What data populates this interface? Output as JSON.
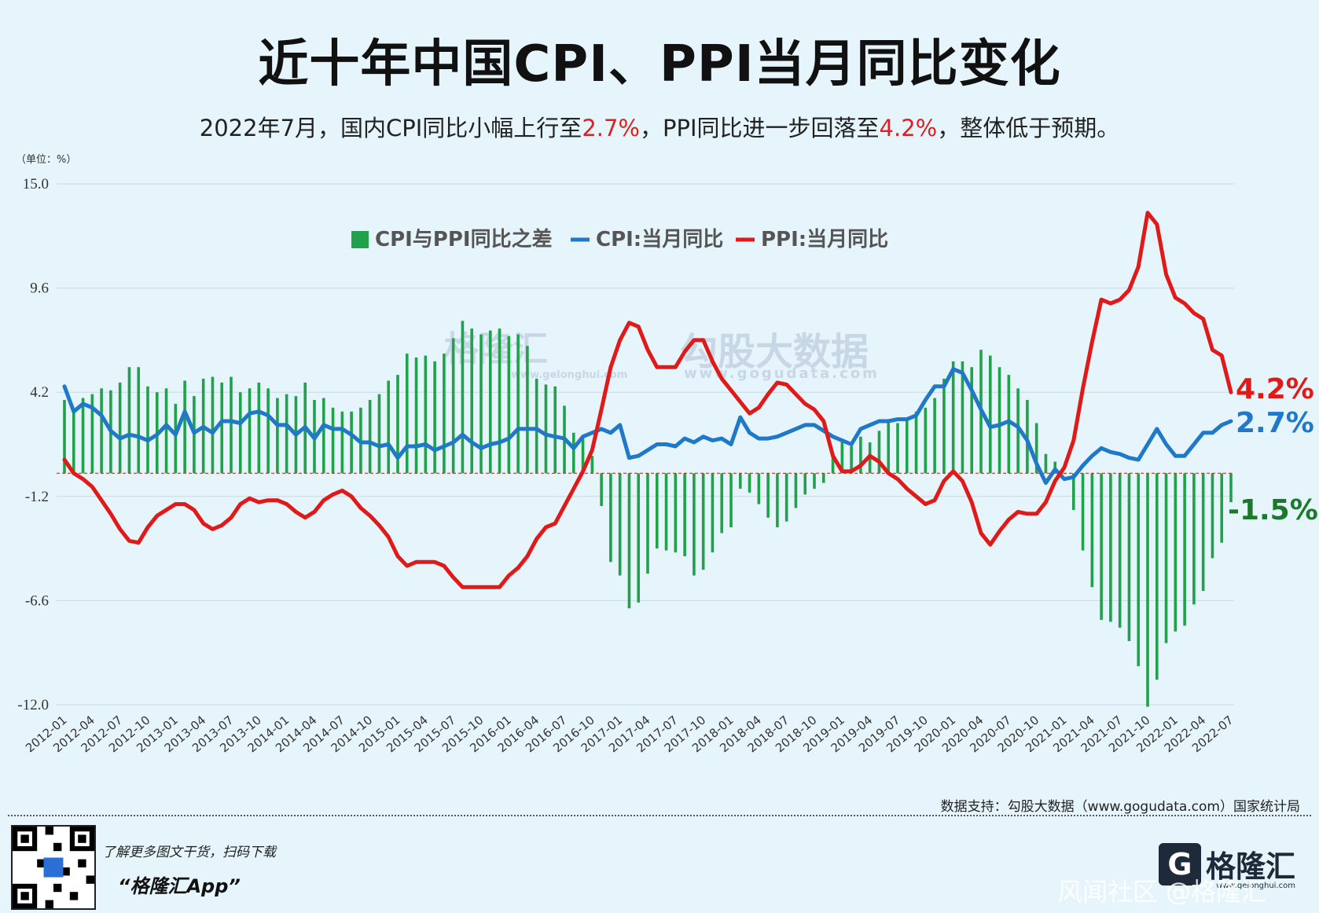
{
  "title": "近十年中国CPI、PPI当月同比变化",
  "subtitle": {
    "part1": "2022年7月，国内CPI同比小幅上行至",
    "cpi_value": "2.7%",
    "part2": "，PPI同比进一步回落至",
    "ppi_value": "4.2%",
    "part3": "，整体低于预期。"
  },
  "unit_label": "（单位：%）",
  "watermark": {
    "brand": "格隆汇",
    "brand_url": "www.gelonghui.com",
    "data_brand": "勾股大数据",
    "data_url": "www.gogudata.com"
  },
  "source_text": "数据支持：勾股大数据（www.gogudata.com）国家统计局",
  "footer": {
    "promo": "了解更多图文干货，扫码下载",
    "app_name": "“格隆汇App”",
    "logo_name": "格隆汇",
    "logo_url": "www.gelonghui.com",
    "corner_watermark": "风闻社区 @格隆汇"
  },
  "colors": {
    "diff": "#1fa24a",
    "cpi": "#1f78c8",
    "ppi": "#e01919",
    "end_diff": "#1a7a2a"
  },
  "chart_data": {
    "type": "bar+line",
    "y_ticks": [
      15.0,
      9.6,
      4.2,
      -1.2,
      -6.6,
      -12.0
    ],
    "y_tick_labels": [
      "15.0",
      "9.6",
      "4.2",
      "-1.2",
      "-6.6",
      "-12.0"
    ],
    "ylim": [
      -12.0,
      15.0
    ],
    "x_start": "2012-01",
    "x_end": "2022-07",
    "x_tick_labels": [
      "2012-01",
      "2012-04",
      "2012-07",
      "2012-10",
      "2013-01",
      "2013-04",
      "2013-07",
      "2013-10",
      "2014-01",
      "2014-04",
      "2014-07",
      "2014-10",
      "2015-01",
      "2015-04",
      "2015-07",
      "2015-10",
      "2016-01",
      "2016-04",
      "2016-07",
      "2016-10",
      "2017-01",
      "2017-04",
      "2017-07",
      "2017-10",
      "2018-01",
      "2018-04",
      "2018-07",
      "2018-10",
      "2019-01",
      "2019-04",
      "2019-07",
      "2019-10",
      "2020-01",
      "2020-04",
      "2020-07",
      "2020-10",
      "2021-01",
      "2021-04",
      "2021-07",
      "2021-10",
      "2022-01",
      "2022-04",
      "2022-07"
    ],
    "legend": [
      "CPI与PPI同比之差",
      "CPI:当月同比",
      "PPI:当月同比"
    ],
    "series": [
      {
        "name": "CPI:当月同比",
        "values": [
          4.5,
          3.2,
          3.6,
          3.4,
          3.0,
          2.2,
          1.8,
          2.0,
          1.9,
          1.7,
          2.0,
          2.5,
          2.0,
          3.2,
          2.1,
          2.4,
          2.1,
          2.7,
          2.7,
          2.6,
          3.1,
          3.2,
          3.0,
          2.5,
          2.5,
          2.0,
          2.4,
          1.8,
          2.5,
          2.3,
          2.3,
          2.0,
          1.6,
          1.6,
          1.4,
          1.5,
          0.8,
          1.4,
          1.4,
          1.5,
          1.2,
          1.4,
          1.6,
          2.0,
          1.6,
          1.3,
          1.5,
          1.6,
          1.8,
          2.3,
          2.3,
          2.3,
          2.0,
          1.9,
          1.8,
          1.3,
          1.9,
          2.1,
          2.3,
          2.1,
          2.5,
          0.8,
          0.9,
          1.2,
          1.5,
          1.5,
          1.4,
          1.8,
          1.6,
          1.9,
          1.7,
          1.8,
          1.5,
          2.9,
          2.1,
          1.8,
          1.8,
          1.9,
          2.1,
          2.3,
          2.5,
          2.5,
          2.2,
          1.9,
          1.7,
          1.5,
          2.3,
          2.5,
          2.7,
          2.7,
          2.8,
          2.8,
          3.0,
          3.8,
          4.5,
          4.5,
          5.4,
          5.2,
          4.3,
          3.3,
          2.4,
          2.5,
          2.7,
          2.4,
          1.7,
          0.5,
          -0.5,
          0.2,
          -0.3,
          -0.2,
          0.4,
          0.9,
          1.3,
          1.1,
          1.0,
          0.8,
          0.7,
          1.5,
          2.3,
          1.5,
          0.9,
          0.9,
          1.5,
          2.1,
          2.1,
          2.5,
          2.7
        ],
        "color": "#1f78c8",
        "end_label": "2.7%"
      },
      {
        "name": "PPI:当月同比",
        "values": [
          0.7,
          0.0,
          -0.3,
          -0.7,
          -1.4,
          -2.1,
          -2.9,
          -3.5,
          -3.6,
          -2.8,
          -2.2,
          -1.9,
          -1.6,
          -1.6,
          -1.9,
          -2.6,
          -2.9,
          -2.7,
          -2.3,
          -1.6,
          -1.3,
          -1.5,
          -1.4,
          -1.4,
          -1.6,
          -2.0,
          -2.3,
          -2.0,
          -1.4,
          -1.1,
          -0.9,
          -1.2,
          -1.8,
          -2.2,
          -2.7,
          -3.3,
          -4.3,
          -4.8,
          -4.6,
          -4.6,
          -4.6,
          -4.8,
          -5.4,
          -5.9,
          -5.9,
          -5.9,
          -5.9,
          -5.9,
          -5.3,
          -4.9,
          -4.3,
          -3.4,
          -2.8,
          -2.6,
          -1.7,
          -0.8,
          0.1,
          1.2,
          3.3,
          5.5,
          6.9,
          7.8,
          7.6,
          6.4,
          5.5,
          5.5,
          5.5,
          6.3,
          6.9,
          6.9,
          5.8,
          4.9,
          4.3,
          3.7,
          3.1,
          3.4,
          4.1,
          4.7,
          4.6,
          4.1,
          3.6,
          3.3,
          2.7,
          0.9,
          0.1,
          0.1,
          0.4,
          0.9,
          0.6,
          0.0,
          -0.3,
          -0.8,
          -1.2,
          -1.6,
          -1.4,
          -0.4,
          0.1,
          -0.4,
          -1.5,
          -3.1,
          -3.7,
          -3.0,
          -2.4,
          -2.0,
          -2.1,
          -2.1,
          -1.5,
          -0.4,
          0.3,
          1.7,
          4.4,
          6.8,
          9.0,
          8.8,
          9.0,
          9.5,
          10.7,
          13.5,
          12.9,
          10.3,
          9.1,
          8.8,
          8.3,
          8.0,
          6.4,
          6.1,
          4.2
        ],
        "color": "#e01919",
        "end_label": "4.2%"
      },
      {
        "name": "CPI与PPI同比之差",
        "values": [
          3.8,
          3.2,
          3.9,
          4.1,
          4.4,
          4.3,
          4.7,
          5.5,
          5.5,
          4.5,
          4.2,
          4.4,
          3.6,
          4.8,
          4.0,
          4.9,
          5.0,
          4.7,
          5.0,
          4.2,
          4.4,
          4.7,
          4.4,
          3.9,
          4.1,
          4.0,
          4.7,
          3.8,
          3.9,
          3.4,
          3.2,
          3.2,
          3.4,
          3.8,
          4.1,
          4.8,
          5.1,
          6.2,
          6.0,
          6.1,
          5.8,
          6.2,
          7.0,
          7.9,
          7.5,
          7.2,
          7.4,
          7.5,
          7.1,
          7.2,
          6.6,
          4.9,
          4.6,
          4.5,
          3.5,
          2.1,
          1.8,
          0.9,
          -1.7,
          -4.6,
          -5.3,
          -7.0,
          -6.7,
          -5.2,
          -3.9,
          -4.0,
          -4.1,
          -4.3,
          -5.3,
          -5.0,
          -4.1,
          -3.1,
          -2.8,
          -0.8,
          -1.0,
          -1.6,
          -2.3,
          -2.8,
          -2.5,
          -1.8,
          -1.1,
          -0.8,
          -0.5,
          1.0,
          1.6,
          1.4,
          1.9,
          1.6,
          2.2,
          2.8,
          2.6,
          2.8,
          3.2,
          3.4,
          3.9,
          4.9,
          5.8,
          5.8,
          5.5,
          6.4,
          6.1,
          5.5,
          5.1,
          4.4,
          3.8,
          2.6,
          1.0,
          0.6,
          0.0,
          -1.9,
          -4.0,
          -5.9,
          -7.6,
          -7.7,
          -8.0,
          -8.7,
          -10.0,
          -12.1,
          -10.7,
          -8.8,
          -8.2,
          -7.9,
          -6.8,
          -6.1,
          -4.4,
          -3.6,
          -1.5
        ],
        "color": "#1fa24a",
        "end_label": "-1.5%"
      }
    ]
  }
}
